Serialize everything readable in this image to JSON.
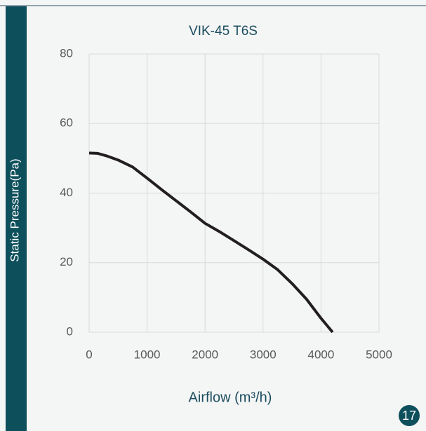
{
  "chart_data": {
    "type": "line",
    "title": "VIK-45 T6S",
    "xlabel": "Airflow (m³/h)",
    "ylabel": "Static Pressure(Pa)",
    "x": [
      0,
      150,
      300,
      500,
      750,
      1000,
      1250,
      1500,
      1750,
      2000,
      2250,
      2500,
      2750,
      3000,
      3250,
      3500,
      3750,
      4000,
      4200
    ],
    "series": [
      {
        "name": "VIK-45 T6S",
        "color": "#231f20",
        "values": [
          51.5,
          51.4,
          50.7,
          49.5,
          47.5,
          44.3,
          41,
          37.8,
          34.6,
          31.3,
          28.9,
          26.3,
          23.7,
          21,
          18,
          14,
          9.5,
          4,
          0
        ]
      }
    ],
    "xlim": [
      0,
      5000
    ],
    "xticks": [
      0,
      1000,
      2000,
      3000,
      4000,
      5000
    ],
    "ylim": [
      0,
      80
    ],
    "yticks": [
      0,
      20,
      40,
      60,
      80
    ],
    "grid": true
  },
  "page_number": "17"
}
